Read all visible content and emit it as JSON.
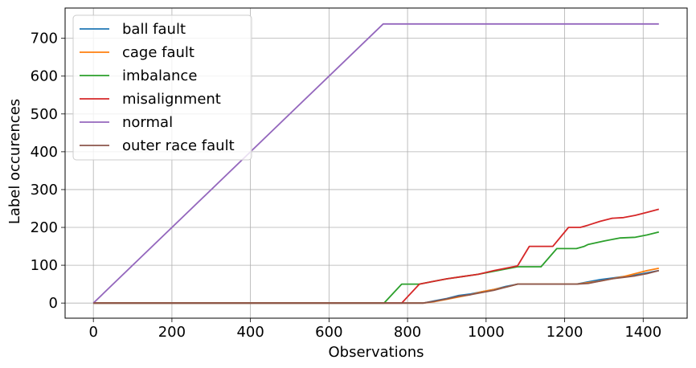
{
  "chart_data": {
    "type": "line",
    "xlabel": "Observations",
    "ylabel": "Label occurences",
    "xlim": [
      -72,
      1512
    ],
    "ylim": [
      -40,
      780
    ],
    "xticks": [
      0,
      200,
      400,
      600,
      800,
      1000,
      1200,
      1400
    ],
    "yticks": [
      0,
      100,
      200,
      300,
      400,
      500,
      600,
      700
    ],
    "grid": true,
    "legend_position": "upper-left",
    "series": [
      {
        "name": "ball fault",
        "color": "#1f77b4",
        "points": [
          [
            0,
            0
          ],
          [
            840,
            0
          ],
          [
            870,
            6
          ],
          [
            900,
            12
          ],
          [
            930,
            20
          ],
          [
            960,
            24
          ],
          [
            990,
            30
          ],
          [
            1020,
            36
          ],
          [
            1050,
            44
          ],
          [
            1080,
            50
          ],
          [
            1230,
            50
          ],
          [
            1260,
            56
          ],
          [
            1290,
            62
          ],
          [
            1320,
            66
          ],
          [
            1350,
            70
          ],
          [
            1380,
            74
          ],
          [
            1410,
            80
          ],
          [
            1440,
            86
          ]
        ]
      },
      {
        "name": "cage fault",
        "color": "#ff7f0e",
        "points": [
          [
            0,
            0
          ],
          [
            840,
            0
          ],
          [
            870,
            4
          ],
          [
            900,
            10
          ],
          [
            930,
            16
          ],
          [
            960,
            22
          ],
          [
            990,
            30
          ],
          [
            1020,
            36
          ],
          [
            1050,
            42
          ],
          [
            1080,
            50
          ],
          [
            1230,
            50
          ],
          [
            1260,
            54
          ],
          [
            1290,
            58
          ],
          [
            1320,
            64
          ],
          [
            1350,
            70
          ],
          [
            1380,
            78
          ],
          [
            1410,
            86
          ],
          [
            1440,
            92
          ]
        ]
      },
      {
        "name": "imbalance",
        "color": "#2ca02c",
        "points": [
          [
            0,
            0
          ],
          [
            740,
            0
          ],
          [
            785,
            50
          ],
          [
            830,
            50
          ],
          [
            860,
            56
          ],
          [
            900,
            64
          ],
          [
            940,
            70
          ],
          [
            980,
            76
          ],
          [
            1020,
            84
          ],
          [
            1060,
            92
          ],
          [
            1080,
            96
          ],
          [
            1120,
            96
          ],
          [
            1140,
            96
          ],
          [
            1180,
            144
          ],
          [
            1230,
            144
          ],
          [
            1250,
            150
          ],
          [
            1260,
            155
          ],
          [
            1300,
            164
          ],
          [
            1340,
            172
          ],
          [
            1380,
            174
          ],
          [
            1410,
            180
          ],
          [
            1440,
            188
          ]
        ]
      },
      {
        "name": "misalignment",
        "color": "#d62728",
        "points": [
          [
            0,
            0
          ],
          [
            785,
            0
          ],
          [
            830,
            50
          ],
          [
            860,
            56
          ],
          [
            900,
            64
          ],
          [
            940,
            70
          ],
          [
            980,
            76
          ],
          [
            1020,
            86
          ],
          [
            1060,
            94
          ],
          [
            1080,
            98
          ],
          [
            1110,
            150
          ],
          [
            1130,
            150
          ],
          [
            1170,
            150
          ],
          [
            1210,
            200
          ],
          [
            1240,
            200
          ],
          [
            1260,
            206
          ],
          [
            1290,
            216
          ],
          [
            1320,
            224
          ],
          [
            1350,
            226
          ],
          [
            1380,
            232
          ],
          [
            1410,
            240
          ],
          [
            1440,
            248
          ]
        ]
      },
      {
        "name": "normal",
        "color": "#9467bd",
        "points": [
          [
            0,
            0
          ],
          [
            738,
            738
          ],
          [
            1440,
            738
          ]
        ]
      },
      {
        "name": "outer race fault",
        "color": "#8c564b",
        "points": [
          [
            0,
            0
          ],
          [
            840,
            0
          ],
          [
            870,
            5
          ],
          [
            900,
            11
          ],
          [
            930,
            18
          ],
          [
            960,
            22
          ],
          [
            990,
            28
          ],
          [
            1020,
            34
          ],
          [
            1050,
            42
          ],
          [
            1080,
            50
          ],
          [
            1230,
            50
          ],
          [
            1260,
            52
          ],
          [
            1290,
            58
          ],
          [
            1320,
            64
          ],
          [
            1350,
            68
          ],
          [
            1380,
            72
          ],
          [
            1410,
            78
          ],
          [
            1440,
            86
          ]
        ]
      }
    ]
  }
}
